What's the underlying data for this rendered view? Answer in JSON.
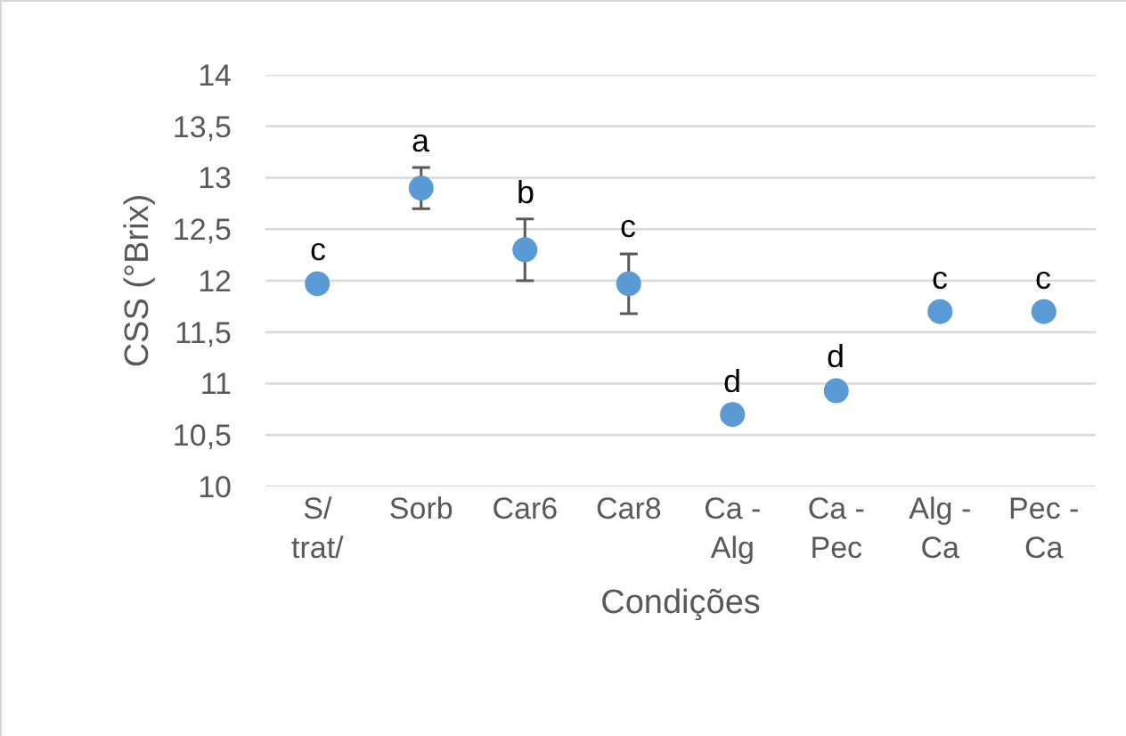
{
  "chart_data": {
    "type": "scatter",
    "xlabel": "Condições",
    "ylabel": "CSS (°Brix)",
    "categories": [
      "S/ trat/",
      "Sorb",
      "Car6",
      "Car8",
      "Ca - Alg",
      "Ca - Pec",
      "Alg - Ca",
      "Pec - Ca"
    ],
    "values": [
      11.97,
      12.9,
      12.3,
      11.97,
      10.7,
      10.93,
      11.7,
      11.7
    ],
    "errors": [
      null,
      0.2,
      0.3,
      0.29,
      null,
      null,
      null,
      null
    ],
    "color": "#5b9bd5",
    "marker": "circle",
    "ylim": [
      10,
      14
    ],
    "yticks": [
      10,
      {
        "value": 10.5,
        "label": "10,5"
      },
      11,
      {
        "value": 11.5,
        "label": "11,5"
      },
      12,
      {
        "value": 12.5,
        "label": "12,5"
      },
      13,
      {
        "value": 13.5,
        "label": "13,5"
      },
      14
    ],
    "grid": "y",
    "legend": false,
    "annotations": [
      {
        "text": "c",
        "x": "S/ trat/",
        "y": 11.97
      },
      {
        "text": "a",
        "x": "Sorb",
        "y": 12.9
      },
      {
        "text": "b",
        "x": "Car6",
        "y": 12.3
      },
      {
        "text": "c",
        "x": "Car8",
        "y": 11.97
      },
      {
        "text": "d",
        "x": "Ca - Alg",
        "y": 10.7
      },
      {
        "text": "d",
        "x": "Ca - Pec",
        "y": 10.93
      },
      {
        "text": "c",
        "x": "Alg - Ca",
        "y": 11.7
      },
      {
        "text": "c",
        "x": "Pec - Ca",
        "y": 11.7
      }
    ]
  }
}
